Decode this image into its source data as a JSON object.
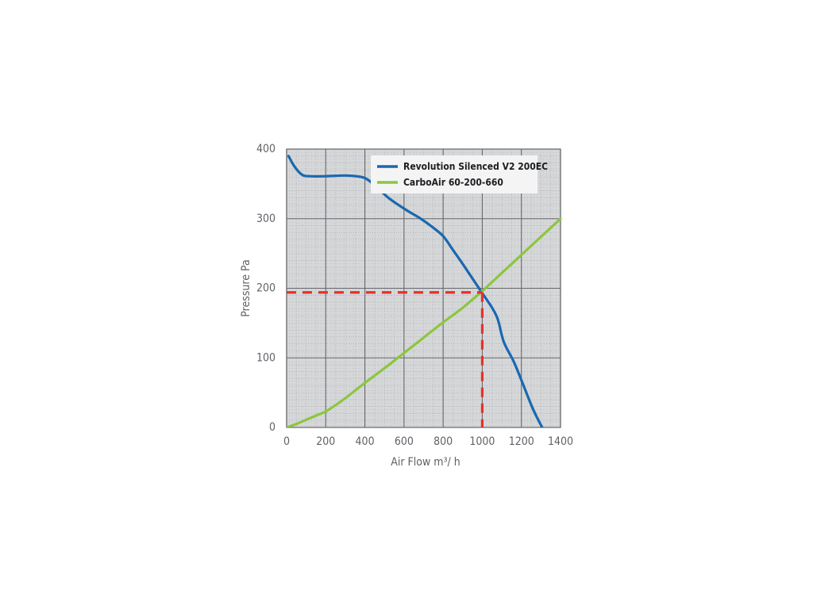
{
  "chart_data": {
    "type": "line",
    "xlabel": "Air Flow m³/ h",
    "ylabel": "Pressure Pa",
    "xlim": [
      0,
      1400
    ],
    "ylim": [
      0,
      400
    ],
    "x_ticks": [
      0,
      200,
      400,
      600,
      800,
      1000,
      1200,
      1400
    ],
    "y_ticks": [
      0,
      100,
      200,
      300,
      400
    ],
    "grid": true,
    "legend_position": "top-right",
    "series": [
      {
        "name": "Revolution Silenced V2 200EC",
        "color": "#1a68b0",
        "points": [
          [
            10,
            390
          ],
          [
            40,
            375
          ],
          [
            80,
            363
          ],
          [
            120,
            361
          ],
          [
            200,
            361
          ],
          [
            300,
            362
          ],
          [
            380,
            360
          ],
          [
            420,
            355
          ],
          [
            470,
            343
          ],
          [
            520,
            330
          ],
          [
            570,
            320
          ],
          [
            620,
            311
          ],
          [
            680,
            301
          ],
          [
            740,
            289
          ],
          [
            800,
            275
          ],
          [
            850,
            255
          ],
          [
            900,
            235
          ],
          [
            950,
            214
          ],
          [
            1000,
            193
          ],
          [
            1050,
            172
          ],
          [
            1080,
            155
          ],
          [
            1110,
            123
          ],
          [
            1160,
            95
          ],
          [
            1200,
            68
          ],
          [
            1260,
            26
          ],
          [
            1310,
            -2
          ]
        ]
      },
      {
        "name": "CarboAir 60-200-660",
        "color": "#8cc63f",
        "points": [
          [
            0,
            0
          ],
          [
            50,
            5
          ],
          [
            100,
            11
          ],
          [
            150,
            17
          ],
          [
            200,
            23
          ],
          [
            250,
            32
          ],
          [
            300,
            42
          ],
          [
            400,
            64
          ],
          [
            500,
            85
          ],
          [
            600,
            107
          ],
          [
            700,
            129
          ],
          [
            800,
            151
          ],
          [
            900,
            172
          ],
          [
            1000,
            196
          ],
          [
            1100,
            222
          ],
          [
            1200,
            248
          ],
          [
            1300,
            274
          ],
          [
            1400,
            300
          ]
        ]
      }
    ],
    "annotations": [
      {
        "type": "operating-point-guide",
        "color": "#e8302a",
        "x": 1000,
        "y": 194
      }
    ]
  }
}
